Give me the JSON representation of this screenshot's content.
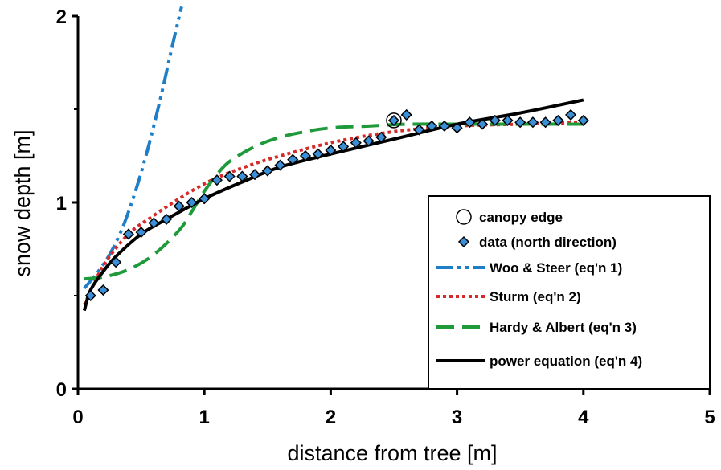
{
  "chart_data": {
    "type": "scatter",
    "xlabel": "distance from tree [m]",
    "ylabel": "snow depth [m]",
    "xlim": [
      0,
      5
    ],
    "ylim": [
      0,
      2
    ],
    "x_ticks": [
      0,
      1,
      2,
      3,
      4,
      5
    ],
    "y_ticks": [
      0,
      1,
      2
    ],
    "x_tick_labels": [
      "0",
      "1",
      "2",
      "3",
      "4",
      "5"
    ],
    "y_tick_labels": [
      "0",
      "1",
      "2"
    ],
    "grid": false,
    "legend_position": "bottom-right",
    "series": [
      {
        "name": "canopy edge",
        "kind": "marker-circle",
        "color": "#000000",
        "x": [
          2.5
        ],
        "y": [
          1.44
        ]
      },
      {
        "name": "data (north direction)",
        "kind": "marker-diamond",
        "color": "#3a8fd6",
        "x": [
          0.1,
          0.2,
          0.3,
          0.4,
          0.5,
          0.6,
          0.7,
          0.8,
          0.9,
          1.0,
          1.1,
          1.2,
          1.3,
          1.4,
          1.5,
          1.6,
          1.7,
          1.8,
          1.9,
          2.0,
          2.1,
          2.2,
          2.3,
          2.4,
          2.5,
          2.6,
          2.7,
          2.8,
          2.9,
          3.0,
          3.1,
          3.2,
          3.3,
          3.4,
          3.5,
          3.6,
          3.7,
          3.8,
          3.9,
          4.0
        ],
        "y": [
          0.5,
          0.53,
          0.68,
          0.83,
          0.84,
          0.89,
          0.91,
          0.98,
          1.0,
          1.02,
          1.12,
          1.14,
          1.14,
          1.15,
          1.17,
          1.2,
          1.23,
          1.25,
          1.26,
          1.28,
          1.3,
          1.32,
          1.33,
          1.35,
          1.44,
          1.47,
          1.39,
          1.41,
          1.41,
          1.4,
          1.43,
          1.42,
          1.44,
          1.44,
          1.43,
          1.43,
          1.43,
          1.44,
          1.47,
          1.44
        ]
      },
      {
        "name": "Woo & Steer (eq'n 1)",
        "kind": "line",
        "color": "#1e7fc8",
        "dash": "20 6 4 6 4 6",
        "width": 4,
        "x": [
          0.05,
          0.15,
          0.25,
          0.35,
          0.45,
          0.55,
          0.65,
          0.75,
          0.82
        ],
        "y": [
          0.54,
          0.62,
          0.72,
          0.86,
          1.05,
          1.28,
          1.55,
          1.85,
          2.05
        ]
      },
      {
        "name": "Sturm (eq'n 2)",
        "kind": "line",
        "color": "#d42a2a",
        "dash": "4 4",
        "width": 4,
        "x": [
          0.05,
          0.2,
          0.4,
          0.6,
          0.8,
          1.0,
          1.2,
          1.5,
          2.0,
          2.5,
          3.0,
          3.5,
          4.0
        ],
        "y": [
          0.45,
          0.66,
          0.83,
          0.93,
          1.02,
          1.1,
          1.16,
          1.23,
          1.32,
          1.38,
          1.41,
          1.42,
          1.43
        ]
      },
      {
        "name": "Hardy & Albert (eq'n 3)",
        "kind": "line",
        "color": "#1f9a3a",
        "dash": "22 10",
        "width": 4,
        "x": [
          0.05,
          0.2,
          0.4,
          0.6,
          0.8,
          0.9,
          1.0,
          1.1,
          1.2,
          1.4,
          1.6,
          1.8,
          2.0,
          2.3,
          2.6,
          3.0,
          3.5,
          4.0
        ],
        "y": [
          0.59,
          0.6,
          0.64,
          0.72,
          0.85,
          0.95,
          1.06,
          1.15,
          1.22,
          1.3,
          1.35,
          1.38,
          1.4,
          1.41,
          1.42,
          1.42,
          1.42,
          1.42
        ]
      },
      {
        "name": "power equation (eq'n 4)",
        "kind": "line",
        "color": "#000000",
        "dash": "",
        "width": 4,
        "x": [
          0.05,
          0.1,
          0.2,
          0.3,
          0.5,
          0.7,
          1.0,
          1.3,
          1.6,
          2.0,
          2.5,
          3.0,
          3.5,
          4.0
        ],
        "y": [
          0.42,
          0.53,
          0.63,
          0.71,
          0.83,
          0.91,
          1.02,
          1.11,
          1.19,
          1.26,
          1.34,
          1.42,
          1.48,
          1.55
        ]
      }
    ]
  }
}
